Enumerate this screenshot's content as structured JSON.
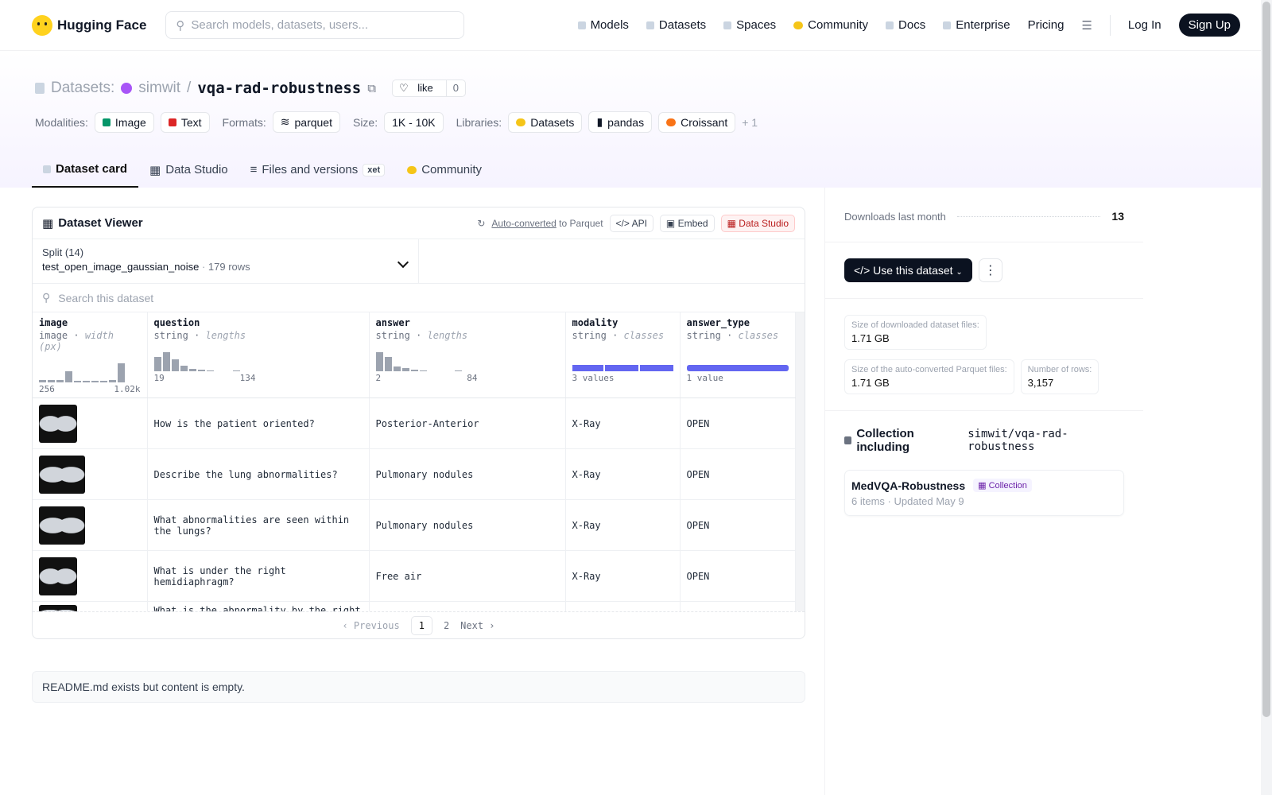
{
  "nav": {
    "brand": "Hugging Face",
    "search_placeholder": "Search models, datasets, users...",
    "links": [
      "Models",
      "Datasets",
      "Spaces",
      "Community",
      "Docs",
      "Enterprise",
      "Pricing"
    ],
    "login": "Log In",
    "signup": "Sign Up"
  },
  "header": {
    "category": "Datasets:",
    "owner": "simwit",
    "name": "vqa-rad-robustness",
    "like": "like",
    "like_count": "0",
    "modalities_label": "Modalities:",
    "modalities": [
      "Image",
      "Text"
    ],
    "formats_label": "Formats:",
    "format": "parquet",
    "size_label": "Size:",
    "size": "1K - 10K",
    "libraries_label": "Libraries:",
    "libraries": [
      "Datasets",
      "pandas",
      "Croissant"
    ],
    "more": "+ 1"
  },
  "tabs": [
    {
      "label": "Dataset card"
    },
    {
      "label": "Data Studio"
    },
    {
      "label": "Files and versions",
      "badge": "xet"
    },
    {
      "label": "Community"
    }
  ],
  "viewer": {
    "title": "Dataset Viewer",
    "auto": "Auto-converted",
    "to_parquet": "to Parquet",
    "api": "API",
    "embed": "Embed",
    "studio": "Data Studio",
    "split_label": "Split (14)",
    "split_name": "test_open_image_gaussian_noise",
    "rows": "179 rows",
    "search_placeholder": "Search this dataset",
    "columns": [
      {
        "name": "image",
        "type": "image",
        "stat": "width (px)",
        "min": "256",
        "max": "1.02k"
      },
      {
        "name": "question",
        "type": "string",
        "stat": "lengths",
        "min": "19",
        "max": "134"
      },
      {
        "name": "answer",
        "type": "string",
        "stat": "lengths",
        "min": "2",
        "max": "84"
      },
      {
        "name": "modality",
        "type": "string",
        "stat": "classes",
        "summary": "3 values"
      },
      {
        "name": "answer_type",
        "type": "string",
        "stat": "classes",
        "summary": "1 value"
      }
    ],
    "rows_data": [
      {
        "question": "How is the patient oriented?",
        "answer": "Posterior-Anterior",
        "modality": "X-Ray",
        "answer_type": "OPEN"
      },
      {
        "question": "Describe the lung abnormalities?",
        "answer": "Pulmonary nodules",
        "modality": "X-Ray",
        "answer_type": "OPEN"
      },
      {
        "question": "What abnormalities are seen within the lungs?",
        "answer": "Pulmonary nodules",
        "modality": "X-Ray",
        "answer_type": "OPEN"
      },
      {
        "question": "What is under the right hemidiaphragm?",
        "answer": "Free air",
        "modality": "X-Ray",
        "answer_type": "OPEN"
      },
      {
        "question": "What is the abnormality by the right",
        "answer": "",
        "modality": "",
        "answer_type": ""
      }
    ],
    "pager": {
      "prev": "Previous",
      "pages": [
        "1",
        "2"
      ],
      "next": "Next"
    }
  },
  "readme": "README.md exists but content is empty.",
  "sidebar": {
    "downloads_label": "Downloads last month",
    "downloads": "13",
    "use_button": "Use this dataset",
    "sizes": [
      {
        "k": "Size of downloaded dataset files:",
        "v": "1.71 GB"
      },
      {
        "k": "Size of the auto-converted Parquet files:",
        "v": "1.71 GB"
      },
      {
        "k": "Number of rows:",
        "v": "3,157"
      }
    ],
    "collection_title": "Collection including",
    "collection_repo": "simwit/vqa-rad-robustness",
    "collection": {
      "name": "MedVQA-Robustness",
      "badge": "Collection",
      "items": "6 items",
      "updated": "Updated May 9"
    }
  }
}
